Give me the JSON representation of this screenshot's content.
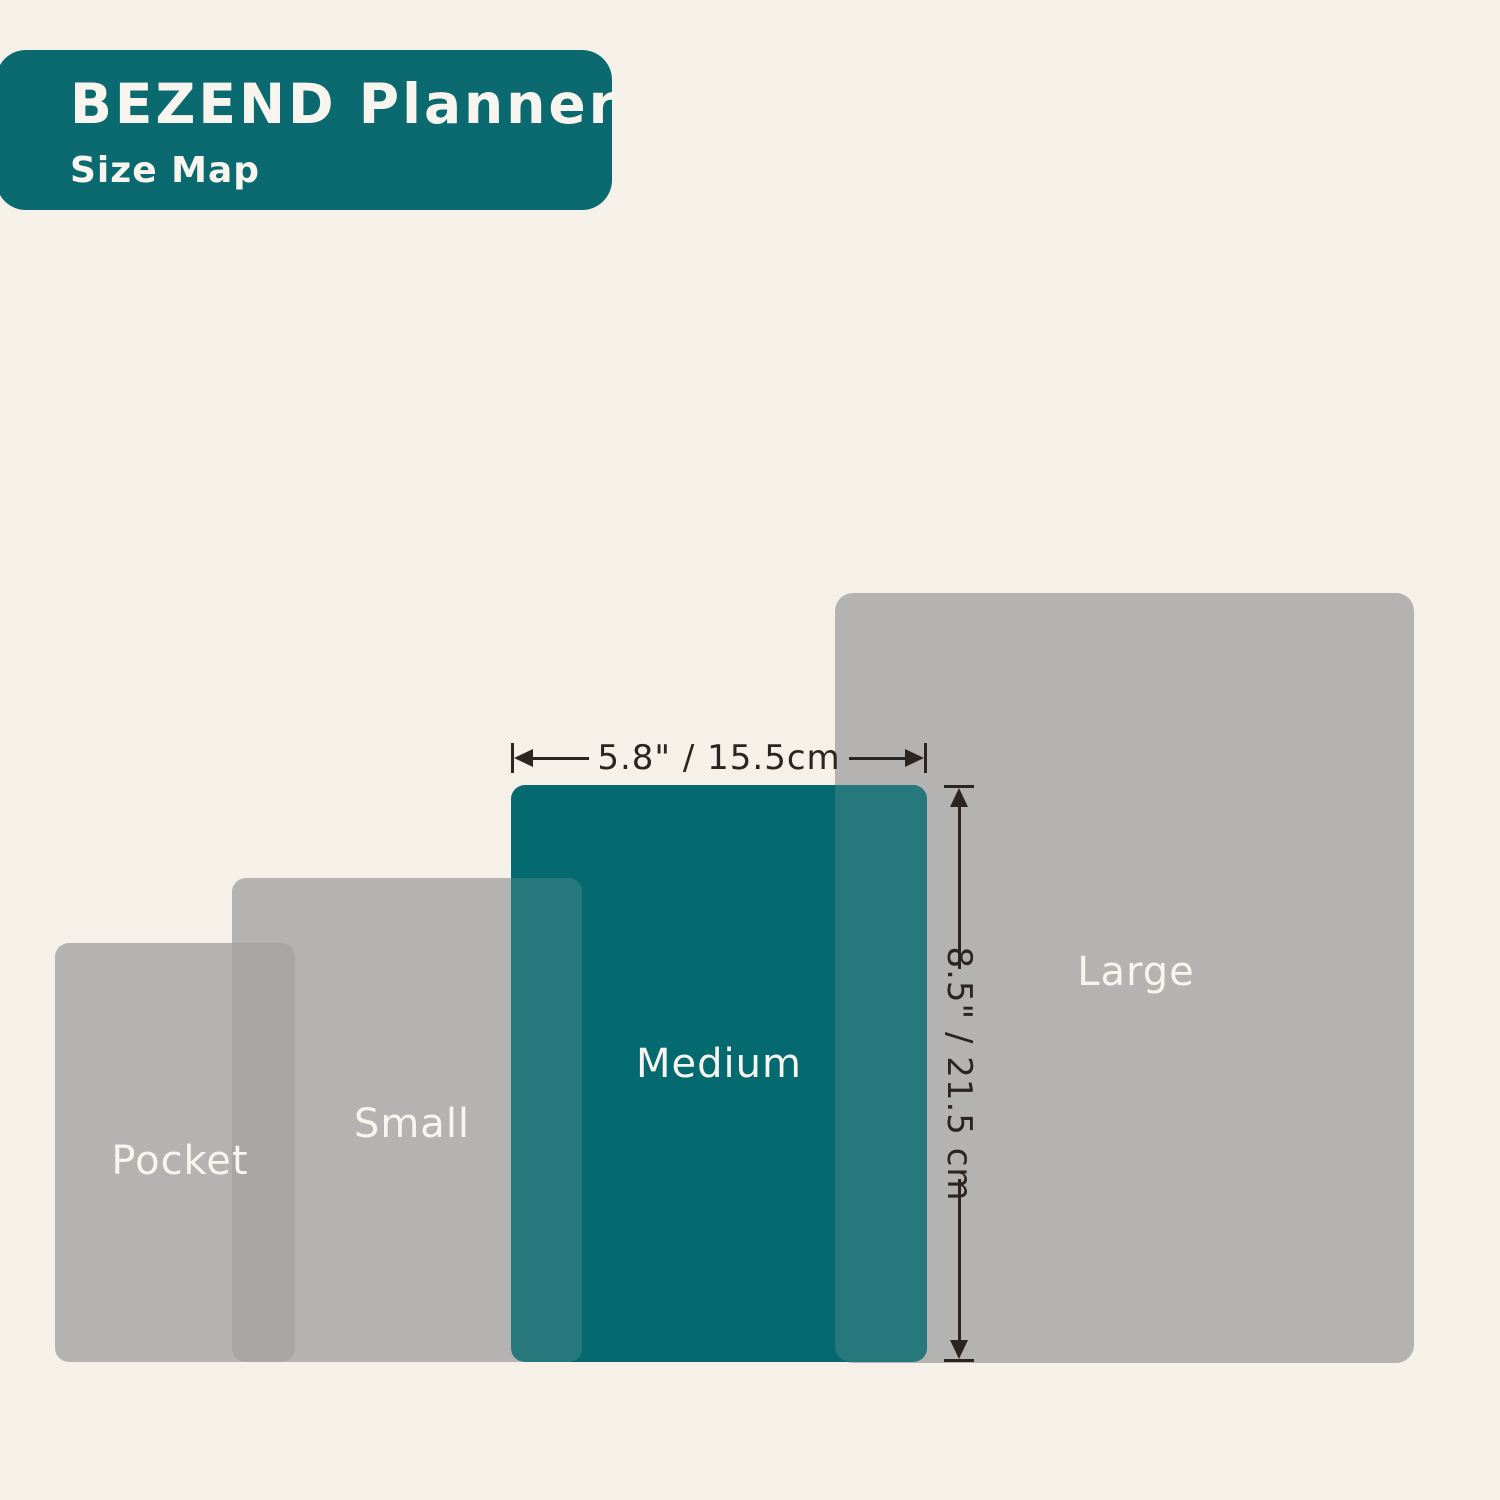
{
  "header": {
    "title": "BEZEND Planner",
    "subtitle": "Size Map"
  },
  "sizes": [
    {
      "label": "Pocket"
    },
    {
      "label": "Small"
    },
    {
      "label": "Medium"
    },
    {
      "label": "Large"
    }
  ],
  "annotations": {
    "width": "5.8\" / 15.5cm",
    "height": "8.5\" / 21.5 cm"
  },
  "colors": {
    "background": "#F5F1E8",
    "teal": "#0B6A6F",
    "teal_fill": "#046A6F",
    "teal_overlap": "#26787C",
    "gray": "#B4B3B1",
    "gray_overlap": "#A7A6A4",
    "label": "#F8F5EE",
    "annotation": "#2B2420"
  }
}
